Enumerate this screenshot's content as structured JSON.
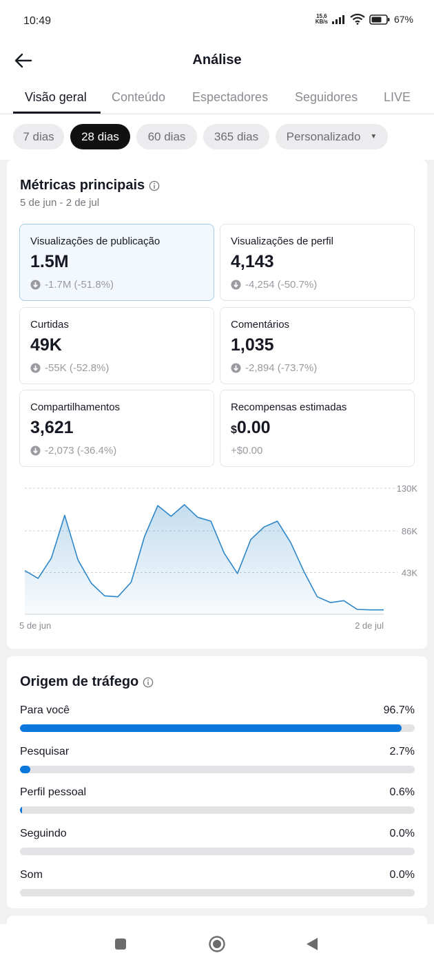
{
  "status": {
    "time": "10:49",
    "net_speed_value": "15,6",
    "net_speed_unit": "KB/s",
    "battery": "67%"
  },
  "header": {
    "title": "Análise"
  },
  "tabs": [
    "Visão geral",
    "Conteúdo",
    "Espectadores",
    "Seguidores",
    "LIVE"
  ],
  "active_tab": "Visão geral",
  "ranges": [
    "7 dias",
    "28 dias",
    "60 dias",
    "365 dias",
    "Personalizado"
  ],
  "active_range": "28 dias",
  "metrics": {
    "title": "Métricas principais",
    "date_range": "5 de jun - 2 de jul",
    "items": [
      {
        "label": "Visualizações de publicação",
        "value": "1.5M",
        "change": "-1.7M (-51.8%)"
      },
      {
        "label": "Visualizações de perfil",
        "value": "4,143",
        "change": "-4,254 (-50.7%)"
      },
      {
        "label": "Curtidas",
        "value": "49K",
        "change": "-55K (-52.8%)"
      },
      {
        "label": "Comentários",
        "value": "1,035",
        "change": "-2,894 (-73.7%)"
      },
      {
        "label": "Compartilhamentos",
        "value": "3,621",
        "change": "-2,073 (-36.4%)"
      },
      {
        "label": "Recompensas estimadas",
        "currency": "$",
        "value": "0.00",
        "change": "+$0.00"
      }
    ]
  },
  "chart_data": {
    "type": "area",
    "series": "Visualizações de publicação",
    "x_start_label": "5 de jun",
    "x_end_label": "2 de jul",
    "y_ticks": [
      "43K",
      "86K",
      "130K"
    ],
    "y_tick_values": [
      43000,
      86000,
      130000
    ],
    "ylim": [
      0,
      130000
    ],
    "values": [
      45000,
      37000,
      58000,
      102000,
      56000,
      32000,
      19000,
      18000,
      33000,
      80000,
      112000,
      101000,
      113000,
      100000,
      96000,
      63000,
      42000,
      77000,
      90000,
      96000,
      74000,
      44000,
      18000,
      12000,
      14000,
      5000,
      4500,
      4500
    ],
    "grid": true,
    "color": "#2d86c8"
  },
  "traffic": {
    "title": "Origem de tráfego",
    "items": [
      {
        "label": "Para você",
        "value": "96.7%",
        "fraction": 0.967
      },
      {
        "label": "Pesquisar",
        "value": "2.7%",
        "fraction": 0.027
      },
      {
        "label": "Perfil pessoal",
        "value": "0.6%",
        "fraction": 0.006
      },
      {
        "label": "Seguindo",
        "value": "0.0%",
        "fraction": 0.0
      },
      {
        "label": "Som",
        "value": "0.0%",
        "fraction": 0.0
      }
    ]
  },
  "colors": {
    "accent": "#0b76db",
    "chart_line": "#2d86c8",
    "selected_card": "#f2f8fd"
  }
}
